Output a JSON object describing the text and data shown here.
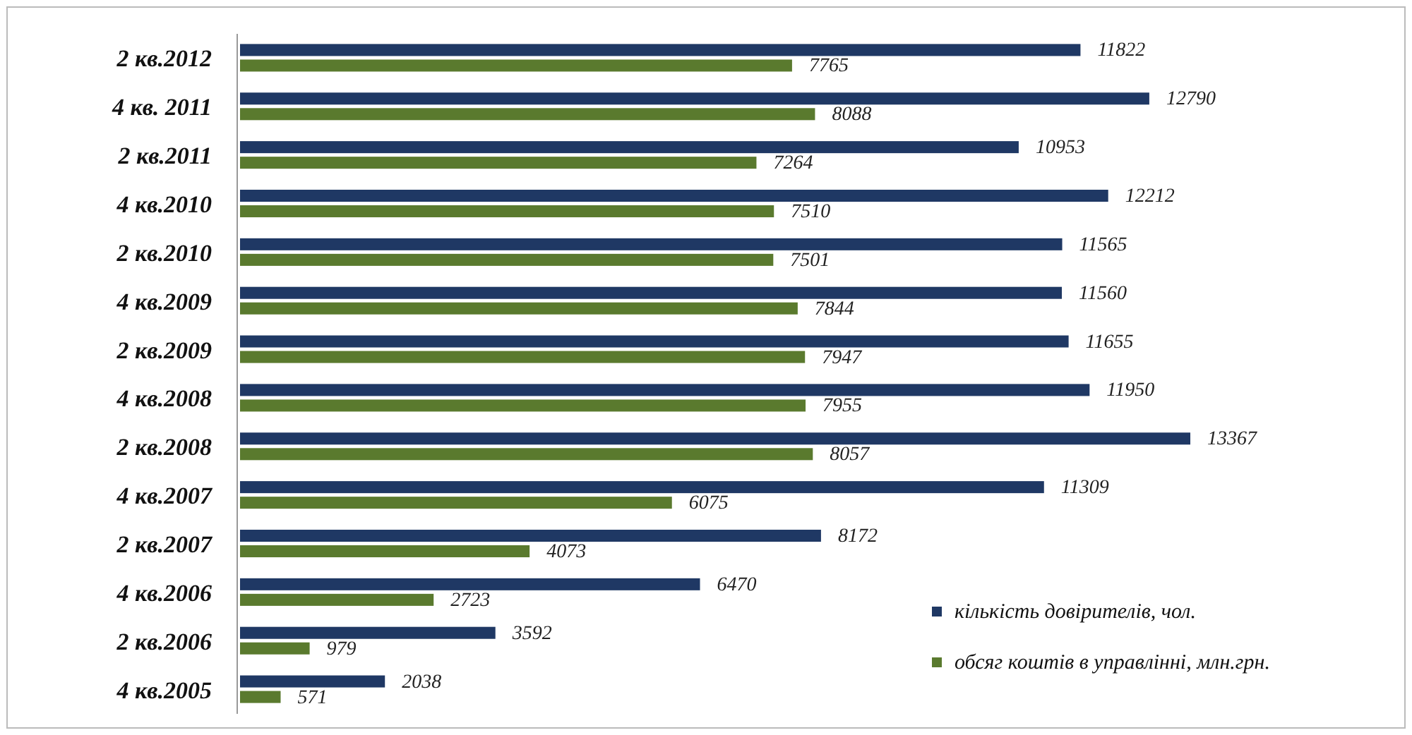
{
  "chart_data": {
    "type": "bar",
    "orientation": "horizontal",
    "data_labels": true,
    "legend": "bottom right",
    "categories": [
      "2 кв.2012",
      "4 кв. 2011",
      "2 кв.2011",
      "4 кв.2010",
      "2 кв.2010",
      "4 кв.2009",
      "2 кв.2009",
      "4 кв.2008",
      "2 кв.2008",
      "4 кв.2007",
      "2 кв.2007",
      "4 кв.2006",
      "2 кв.2006",
      "4 кв.2005"
    ],
    "series": [
      {
        "name": "кількість довірителів, чол.",
        "color": "#1f3864",
        "values": [
          11822,
          12790,
          10953,
          12212,
          11565,
          11560,
          11655,
          11950,
          13367,
          11309,
          8172,
          6470,
          3592,
          2038
        ]
      },
      {
        "name": "обсяг коштів в управлінні, млн.грн.",
        "color": "#5a7a2e",
        "values": [
          7765,
          8088,
          7264,
          7510,
          7501,
          7844,
          7947,
          7955,
          8057,
          6075,
          4073,
          2723,
          979,
          571
        ]
      }
    ]
  }
}
